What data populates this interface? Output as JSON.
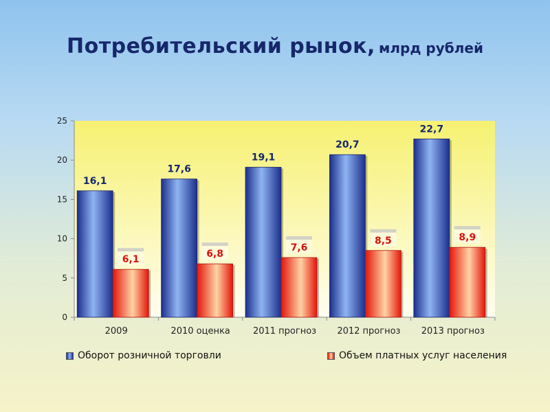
{
  "title": {
    "main": "Потребительский рынок,",
    "sub": "млрд рублей"
  },
  "colors": {
    "series1": "#2f56c8",
    "series2": "#f23a22",
    "label1": "#17276b",
    "label2": "#d8120c",
    "plot_bg_top": "#f6f171",
    "plot_bg_bottom": "#fffdf0"
  },
  "chart_data": {
    "type": "bar",
    "title": "Потребительский рынок, млрд рублей",
    "categories": [
      "2009",
      "2010 оценка",
      "2011 прогноз",
      "2012 прогноз",
      "2013 прогноз"
    ],
    "series": [
      {
        "name": "Оборот розничной торговли",
        "values": [
          16.1,
          17.6,
          19.1,
          20.7,
          22.7
        ],
        "labels": [
          "16,1",
          "17,6",
          "19,1",
          "20,7",
          "22,7"
        ]
      },
      {
        "name": "Объем платных услуг населения",
        "values": [
          6.1,
          6.8,
          7.6,
          8.5,
          8.9
        ],
        "labels": [
          "6,1",
          "6,8",
          "7,6",
          "8,5",
          "8,9"
        ]
      }
    ],
    "ylim": [
      0,
      25
    ],
    "yticks": [
      0,
      5,
      10,
      15,
      20,
      25
    ],
    "grid": false,
    "legend": "bottom"
  }
}
